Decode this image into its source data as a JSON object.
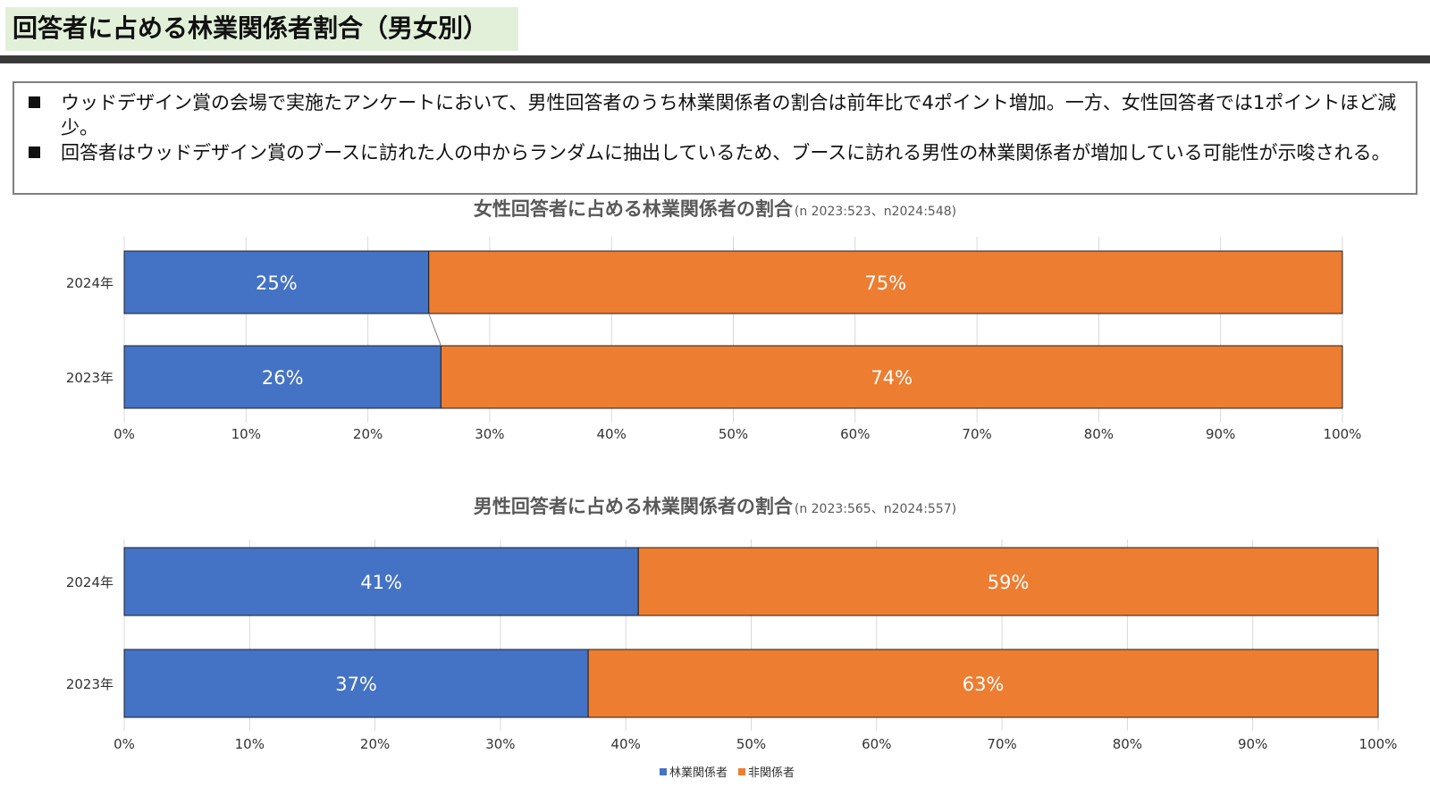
{
  "slide": {
    "title": "回答者に占める林業関係者割合（男女別）",
    "bullets": [
      "ウッドデザイン賞の会場で実施たアンケートにおいて、男性回答者のうち林業関係者の割合は前年比で4ポイント増加。一方、女性回答者では1ポイントほど減少。",
      "回答者はウッドデザイン賞のブースに訪れた人の中からランダムに抽出しているため、ブースに訪れる男性の林業関係者が増加している可能性が示唆される。"
    ]
  },
  "chart_data": [
    {
      "type": "bar",
      "orientation": "horizontal",
      "stacked": "percent",
      "title": "女性回答者に占める林業関係者の割合",
      "subtitle": "(n 2023:523、n2024:548)",
      "categories": [
        "2024年",
        "2023年"
      ],
      "series": [
        {
          "name": "林業関係者",
          "values": [
            25,
            26
          ],
          "labels": [
            "25%",
            "26%"
          ],
          "color": "#4472c4"
        },
        {
          "name": "非関係者",
          "values": [
            75,
            74
          ],
          "labels": [
            "75%",
            "74%"
          ],
          "color": "#ed7d31"
        }
      ],
      "xlim": [
        0,
        100
      ],
      "xticks": [
        "0%",
        "10%",
        "20%",
        "30%",
        "40%",
        "50%",
        "60%",
        "70%",
        "80%",
        "90%",
        "100%"
      ],
      "series_lines": true,
      "grid": true
    },
    {
      "type": "bar",
      "orientation": "horizontal",
      "stacked": "percent",
      "title": "男性回答者に占める林業関係者の割合",
      "subtitle": "(n 2023:565、n2024:557)",
      "categories": [
        "2024年",
        "2023年"
      ],
      "series": [
        {
          "name": "林業関係者",
          "values": [
            41,
            37
          ],
          "labels": [
            "41%",
            "37%"
          ],
          "color": "#4472c4"
        },
        {
          "name": "非関係者",
          "values": [
            59,
            63
          ],
          "labels": [
            "59%",
            "63%"
          ],
          "color": "#ed7d31"
        }
      ],
      "xlim": [
        0,
        100
      ],
      "xticks": [
        "0%",
        "10%",
        "20%",
        "30%",
        "40%",
        "50%",
        "60%",
        "70%",
        "80%",
        "90%",
        "100%"
      ],
      "series_lines": false,
      "grid": true
    }
  ],
  "legend": {
    "placement": "bottom",
    "items": [
      {
        "label": "林業関係者",
        "color": "#4472c4"
      },
      {
        "label": "非関係者",
        "color": "#ed7d31"
      }
    ]
  }
}
